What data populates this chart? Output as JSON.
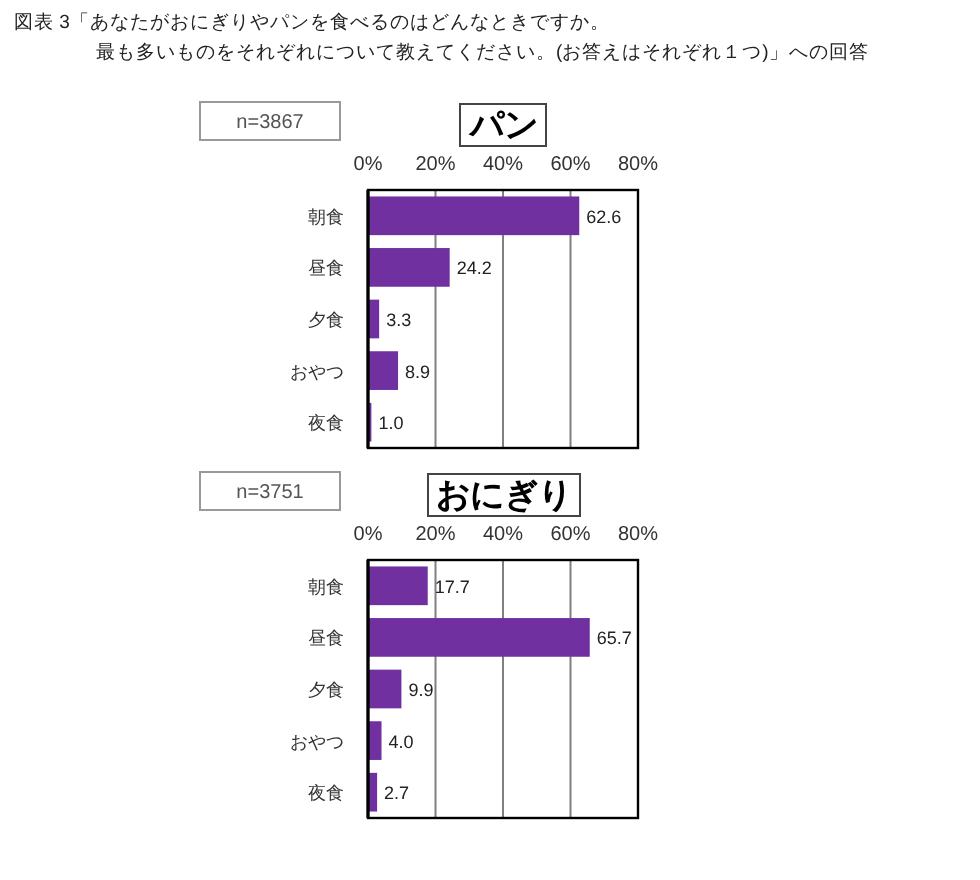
{
  "chart_data": [
    {
      "type": "bar",
      "orientation": "horizontal",
      "title": "パン",
      "annotations": [
        "図表 3「あなたがおにぎりやパンを食べるのはどんなときですか。",
        "最も多いものをそれぞれについて教えてください。(お答えはそれぞれ１つ)」への回答",
        "n=3867"
      ],
      "categories": [
        "朝食",
        "昼食",
        "夕食",
        "おやつ",
        "夜食"
      ],
      "values": [
        62.6,
        24.2,
        3.3,
        8.9,
        1.0
      ],
      "value_labels": [
        "62.6",
        "24.2",
        "3.3",
        "8.9",
        "1.0"
      ],
      "color": "#7030a0",
      "xlim": [
        0,
        80
      ],
      "xticks": [
        {
          "value": 0,
          "label": "0%"
        },
        {
          "value": 20,
          "label": "20%"
        },
        {
          "value": 40,
          "label": "40%"
        },
        {
          "value": 60,
          "label": "60%"
        },
        {
          "value": 80,
          "label": "80%"
        }
      ],
      "grid": "x"
    },
    {
      "type": "bar",
      "orientation": "horizontal",
      "title": "おにぎり",
      "annotations": [
        "n=3751"
      ],
      "categories": [
        "朝食",
        "昼食",
        "夕食",
        "おやつ",
        "夜食"
      ],
      "values": [
        17.7,
        65.7,
        9.9,
        4.0,
        2.7
      ],
      "value_labels": [
        "17.7",
        "65.7",
        "9.9",
        "4.0",
        "2.7"
      ],
      "color": "#7030a0",
      "xlim": [
        0,
        80
      ],
      "xticks": [
        {
          "value": 0,
          "label": "0%"
        },
        {
          "value": 20,
          "label": "20%"
        },
        {
          "value": 40,
          "label": "40%"
        },
        {
          "value": 60,
          "label": "60%"
        },
        {
          "value": 80,
          "label": "80%"
        }
      ],
      "grid": "x"
    }
  ]
}
